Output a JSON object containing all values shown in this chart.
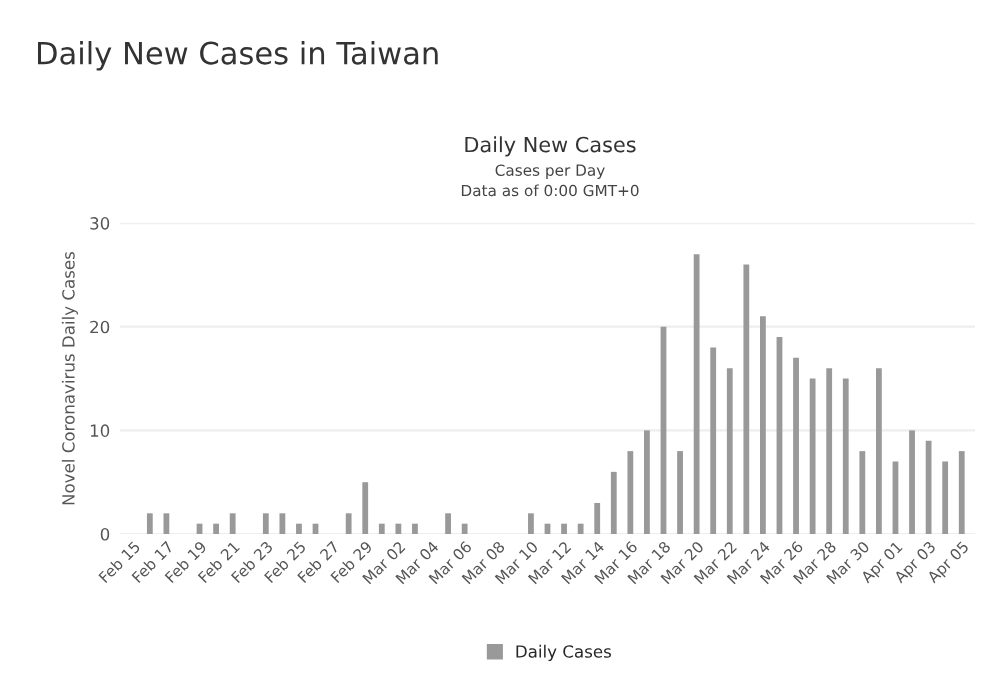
{
  "chart_data": {
    "type": "bar",
    "title": "Daily New Cases in Taiwan",
    "subtitle": "Daily New Cases",
    "annotations": [
      "Cases per Day",
      "Data as of 0:00 GMT+0"
    ],
    "ylabel": "Novel Coronavirus Daily Cases",
    "categories": [
      "Feb 15",
      null,
      "Feb 17",
      null,
      "Feb 19",
      null,
      "Feb 21",
      null,
      "Feb 23",
      null,
      "Feb 25",
      null,
      "Feb 27",
      null,
      "Feb 29",
      null,
      "Mar 02",
      null,
      "Mar 04",
      null,
      "Mar 06",
      null,
      "Mar 08",
      null,
      "Mar 10",
      null,
      "Mar 12",
      null,
      "Mar 14",
      null,
      "Mar 16",
      null,
      "Mar 18",
      null,
      "Mar 20",
      null,
      "Mar 22",
      null,
      "Mar 24",
      null,
      "Mar 26",
      null,
      "Mar 28",
      null,
      "Mar 30",
      null,
      "Apr 01",
      null,
      "Apr 03",
      null,
      "Apr 05"
    ],
    "series": [
      {
        "name": "Daily Cases",
        "color": "#999999",
        "values": [
          0,
          2,
          2,
          0,
          1,
          1,
          2,
          0,
          2,
          2,
          1,
          1,
          0,
          2,
          5,
          1,
          1,
          1,
          0,
          2,
          1,
          0,
          0,
          0,
          2,
          1,
          1,
          1,
          3,
          6,
          8,
          10,
          20,
          8,
          27,
          18,
          16,
          26,
          21,
          19,
          17,
          15,
          16,
          15,
          8,
          16,
          7,
          10,
          9,
          7,
          8
        ]
      }
    ],
    "ylim": [
      0,
      30
    ],
    "yticks": [
      0,
      10,
      20,
      30
    ],
    "grid": "y",
    "legend": "bottom"
  }
}
